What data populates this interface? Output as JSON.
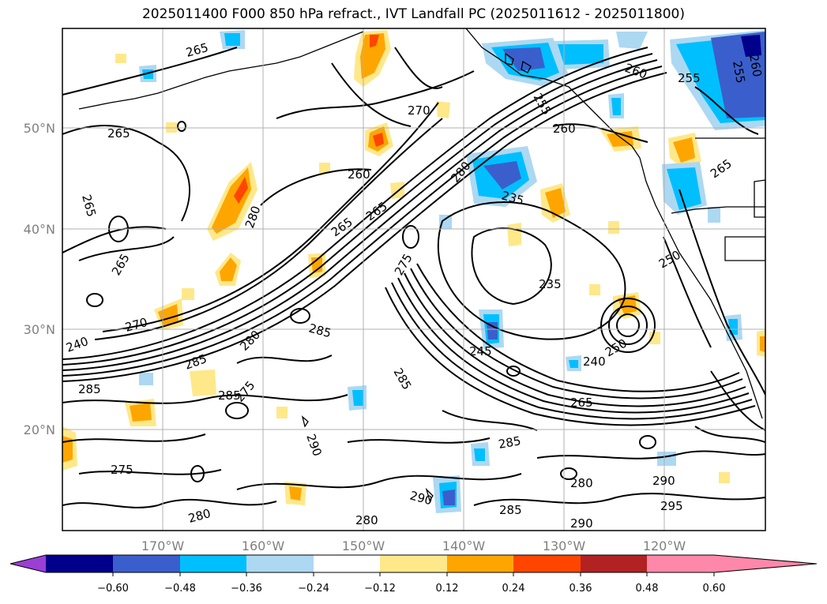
{
  "title": "2025011400 F000 850 hPa refract., IVT Landfall PC (2025011612 - 2025011800)",
  "lat_labels": [
    "50°N",
    "40°N",
    "30°N",
    "20°N"
  ],
  "lon_labels": [
    "170°W",
    "160°W",
    "150°W",
    "140°W",
    "130°W",
    "120°W"
  ],
  "colorbar": {
    "ticks": [
      "−0.60",
      "−0.48",
      "−0.36",
      "−0.24",
      "−0.12",
      "0.12",
      "0.24",
      "0.36",
      "0.48",
      "0.60"
    ],
    "colors": [
      "#9a3fd5",
      "#00008b",
      "#3a5fcd",
      "#00bfff",
      "#add8f2",
      "#ffffff",
      "#ffe88a",
      "#ffa500",
      "#ff4500",
      "#b22222",
      "#ff88aa"
    ]
  },
  "contour_labels": [
    {
      "text": "265"
    },
    {
      "text": "265"
    },
    {
      "text": "265"
    },
    {
      "text": "265"
    },
    {
      "text": "270"
    },
    {
      "text": "260"
    },
    {
      "text": "280"
    },
    {
      "text": "265"
    },
    {
      "text": "280"
    },
    {
      "text": "265"
    },
    {
      "text": "275"
    },
    {
      "text": "235"
    },
    {
      "text": "235"
    },
    {
      "text": "245"
    },
    {
      "text": "240"
    },
    {
      "text": "250"
    },
    {
      "text": "260"
    },
    {
      "text": "255"
    },
    {
      "text": "265"
    },
    {
      "text": "260"
    },
    {
      "text": "255"
    },
    {
      "text": "255"
    },
    {
      "text": "260"
    },
    {
      "text": "250"
    },
    {
      "text": "265"
    },
    {
      "text": "285"
    },
    {
      "text": "285"
    },
    {
      "text": "280"
    },
    {
      "text": "285"
    },
    {
      "text": "275"
    },
    {
      "text": "285"
    },
    {
      "text": "290"
    },
    {
      "text": "290"
    },
    {
      "text": "285"
    },
    {
      "text": "280"
    },
    {
      "text": "290"
    },
    {
      "text": "280"
    },
    {
      "text": "290"
    },
    {
      "text": "295"
    },
    {
      "text": "285"
    },
    {
      "text": "285"
    },
    {
      "text": "280"
    },
    {
      "text": "275"
    },
    {
      "text": "270"
    },
    {
      "text": "240"
    }
  ]
}
